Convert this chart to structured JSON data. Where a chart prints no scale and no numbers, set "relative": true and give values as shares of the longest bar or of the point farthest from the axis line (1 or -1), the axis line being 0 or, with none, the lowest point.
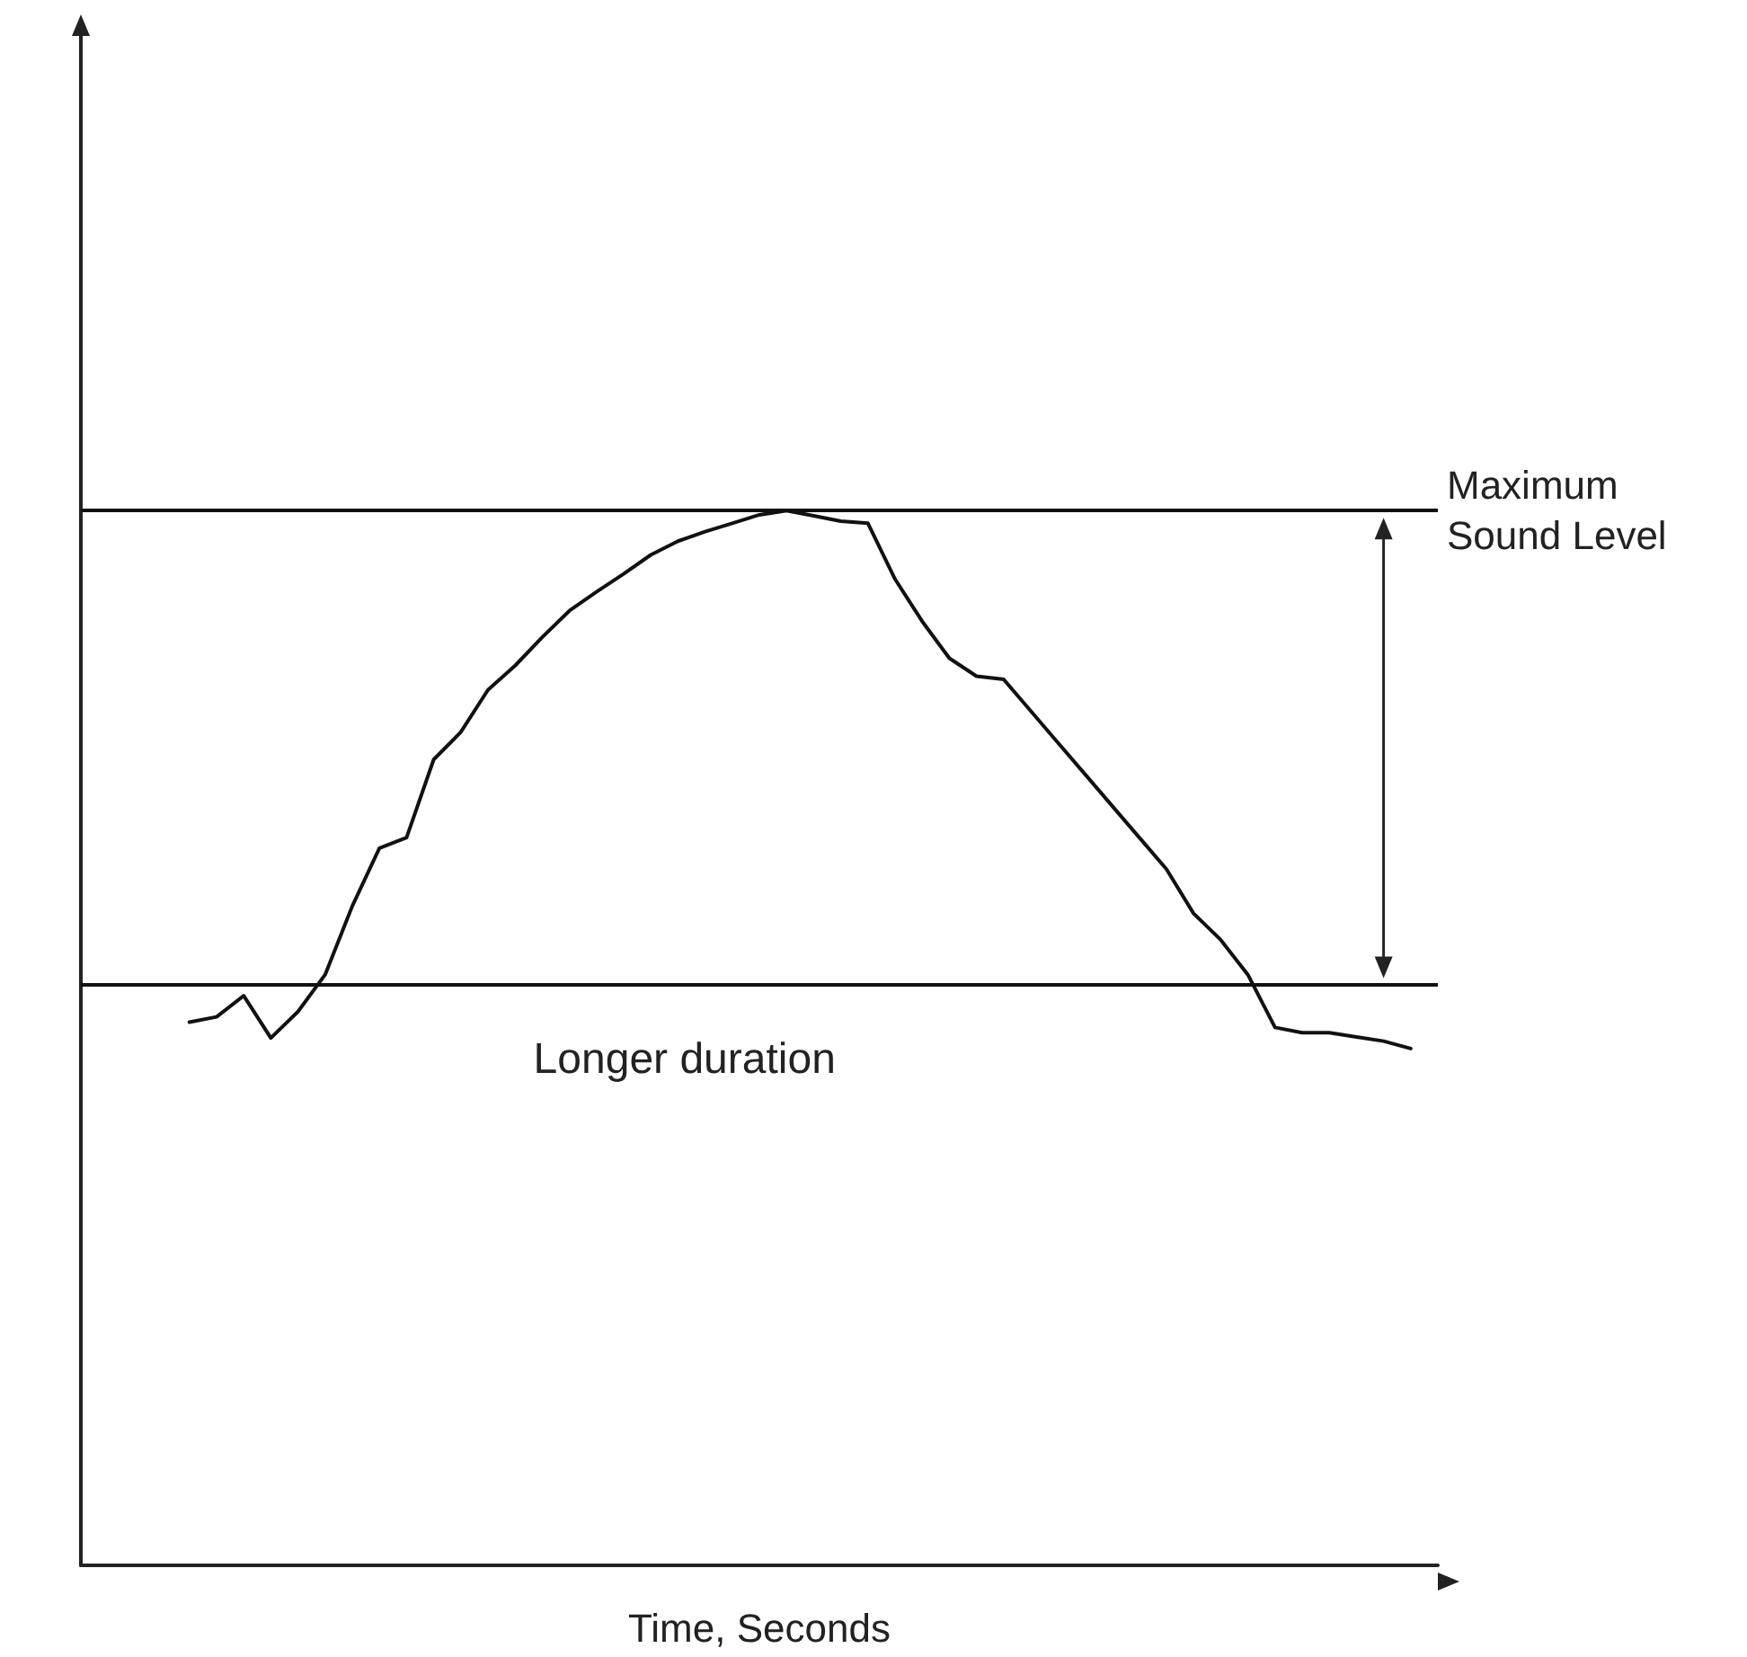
{
  "chart_data": {
    "type": "line",
    "relative": true,
    "xlabel": "Time, Seconds",
    "categories": [
      null,
      null,
      null,
      null,
      null,
      null,
      null,
      null,
      null,
      null,
      null,
      null,
      null,
      null,
      null,
      null,
      null,
      null,
      null,
      null,
      null,
      null,
      null,
      null,
      null,
      null,
      null,
      null,
      null,
      null,
      null,
      null,
      null,
      null,
      null,
      null,
      null,
      null,
      null,
      null,
      null,
      null,
      null,
      null,
      null,
      null,
      null,
      null,
      null,
      null,
      null
    ],
    "series": [
      {
        "color": "#111111",
        "values": [
          null,
          null,
          null,
          null,
          0.515,
          0.52,
          0.54,
          0.5,
          0.525,
          0.56,
          0.625,
          0.68,
          0.69,
          0.764,
          0.79,
          0.83,
          0.853,
          0.88,
          0.905,
          0.923,
          0.94,
          0.958,
          0.971,
          0.98,
          0.988,
          0.996,
          1.0,
          0.995,
          0.99,
          0.988,
          0.935,
          0.895,
          0.86,
          0.843,
          0.84,
          0.81,
          0.78,
          0.75,
          0.72,
          0.69,
          0.66,
          0.618,
          0.593,
          0.56,
          0.51,
          0.505,
          0.505,
          0.501,
          0.497,
          0.49,
          null
        ]
      }
    ],
    "ref_lines": [
      {
        "axis": "y",
        "value": 1.0,
        "label": "Maximum Sound Level"
      },
      {
        "axis": "y",
        "value": 0.55,
        "label": null
      }
    ],
    "annotations": [
      "Longer duration"
    ],
    "grid": false,
    "marker": "none",
    "line_style": "solid"
  }
}
